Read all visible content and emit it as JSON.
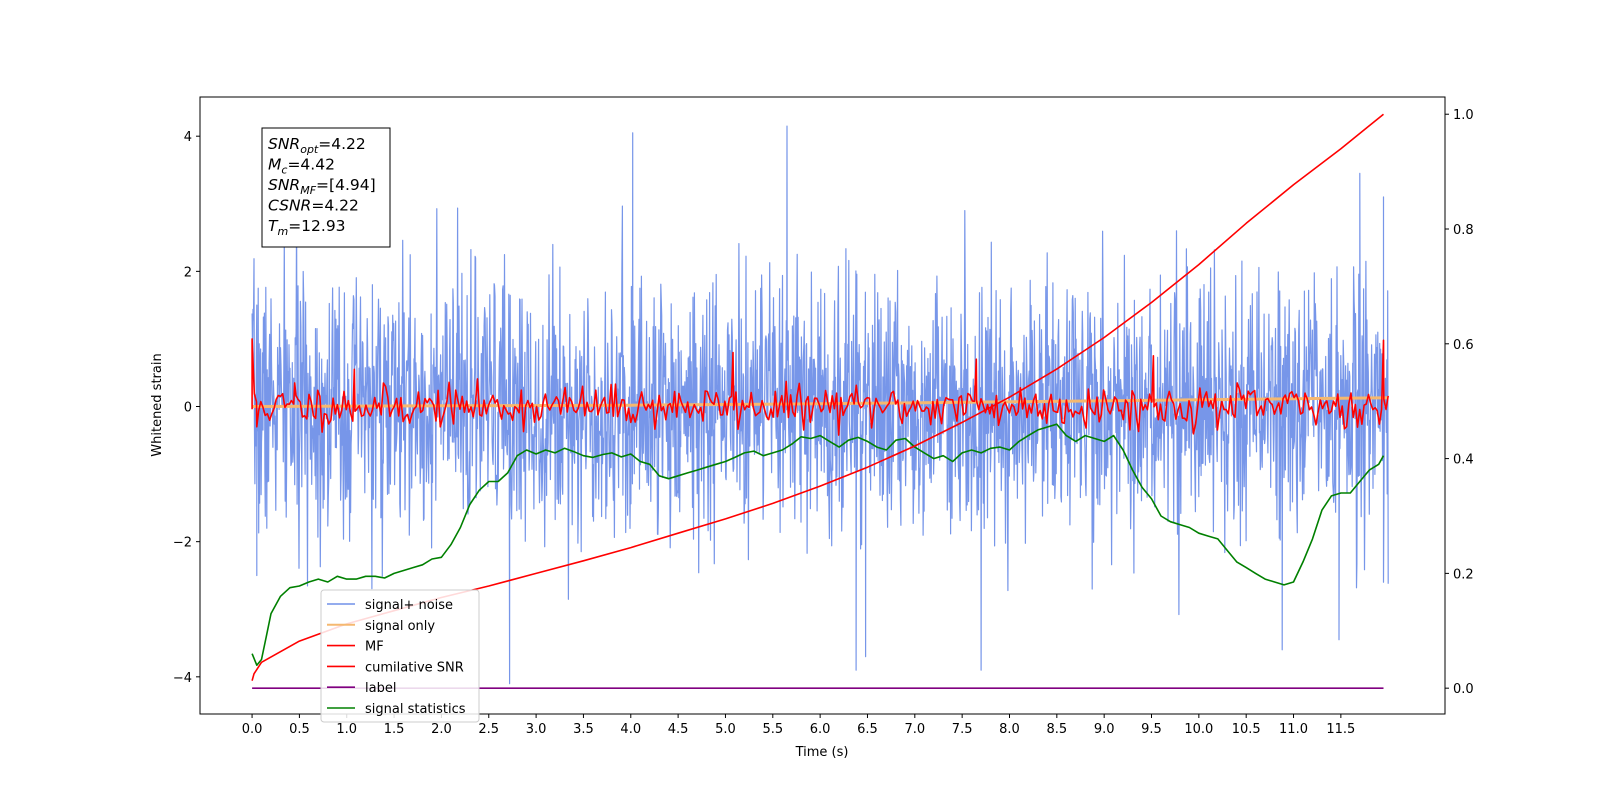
{
  "chart_data": {
    "type": "line",
    "title": "",
    "xlabel": "Time (s)",
    "ylabel": "Whitened strain",
    "y2label": "",
    "xlim": [
      -0.55,
      12.6
    ],
    "ylim": [
      -4.55,
      4.58
    ],
    "y2lim": [
      -0.045,
      1.03
    ],
    "xticks": [
      0.0,
      0.5,
      1.0,
      1.5,
      2.0,
      2.5,
      3.0,
      3.5,
      4.0,
      4.5,
      5.0,
      5.5,
      6.0,
      6.5,
      7.0,
      7.5,
      8.0,
      8.5,
      9.0,
      9.5,
      10.0,
      10.5,
      11.0,
      11.5
    ],
    "xtick_labels": [
      "0.0",
      "0.5",
      "1.0",
      "1.5",
      "2.0",
      "2.5",
      "3.0",
      "3.5",
      "4.0",
      "4.5",
      "5.0",
      "5.5",
      "6.0",
      "6.5",
      "7.0",
      "7.5",
      "8.0",
      "8.5",
      "9.0",
      "9.5",
      "10.0",
      "10.5",
      "11.0",
      "11.5"
    ],
    "yticks": [
      -4,
      -2,
      0,
      2,
      4
    ],
    "ytick_labels": [
      "−4",
      "−2",
      "0",
      "2",
      "4"
    ],
    "y2ticks": [
      0.0,
      0.2,
      0.4,
      0.6,
      0.8,
      1.0
    ],
    "y2tick_labels": [
      "0.0",
      "0.2",
      "0.4",
      "0.6",
      "0.8",
      "1.0"
    ],
    "grid": false,
    "legend_position": "lower-left",
    "annotation": {
      "lines": [
        {
          "var": "SNR",
          "sub": "opt",
          "val": "=4.22"
        },
        {
          "var": "M",
          "sub": "c",
          "val": "=4.42"
        },
        {
          "var": "SNR",
          "sub": "MF",
          "val": "=[4.94]"
        },
        {
          "var": "CSNR",
          "sub": "",
          "val": "=4.22"
        },
        {
          "var": "T",
          "sub": "m",
          "val": "=12.93"
        }
      ]
    },
    "series": [
      {
        "name": "signal+ noise",
        "color": "#7090e8",
        "axis": "left",
        "noise": {
          "t_start": 0.0,
          "t_end": 12.0,
          "std": 0.95,
          "n": 2400,
          "seed": 7
        },
        "values": [
          [
            0.05,
            1.5
          ],
          [
            0.05,
            -2.5
          ],
          [
            2.72,
            -4.1
          ],
          [
            4.02,
            4.05
          ],
          [
            5.65,
            4.15
          ],
          [
            6.38,
            -3.9
          ],
          [
            6.48,
            -3.7
          ],
          [
            7.7,
            -3.9
          ],
          [
            10.88,
            -3.6
          ],
          [
            11.48,
            -3.45
          ],
          [
            11.7,
            3.45
          ],
          [
            11.95,
            3.1
          ],
          [
            11.95,
            -2.6
          ]
        ]
      },
      {
        "name": "signal only",
        "color": "#f5b870",
        "axis": "left",
        "values": [
          [
            0.0,
            0.0
          ],
          [
            2.0,
            0.01
          ],
          [
            4.0,
            0.02
          ],
          [
            6.0,
            0.04
          ],
          [
            8.0,
            0.07
          ],
          [
            10.0,
            0.1
          ],
          [
            12.0,
            0.13
          ]
        ]
      },
      {
        "name": "MF",
        "color": "#ff0000",
        "axis": "left",
        "noise": {
          "t_start": 0.0,
          "t_end": 12.0,
          "std": 0.15,
          "n": 520,
          "seed": 11
        },
        "values": [
          [
            0.0,
            1.0
          ],
          [
            0.05,
            -0.3
          ],
          [
            0.45,
            0.35
          ],
          [
            1.08,
            0.55
          ],
          [
            5.08,
            0.8
          ],
          [
            7.65,
            0.7
          ],
          [
            9.52,
            0.75
          ],
          [
            11.95,
            0.98
          ]
        ]
      },
      {
        "name": "cumilative SNR",
        "color": "#ff0000",
        "axis": "right",
        "values": [
          [
            0.0,
            0.013
          ],
          [
            0.02,
            0.025
          ],
          [
            0.1,
            0.045
          ],
          [
            0.5,
            0.082
          ],
          [
            1.0,
            0.112
          ],
          [
            1.5,
            0.135
          ],
          [
            2.0,
            0.158
          ],
          [
            2.5,
            0.178
          ],
          [
            3.0,
            0.2
          ],
          [
            3.5,
            0.222
          ],
          [
            4.0,
            0.245
          ],
          [
            4.5,
            0.27
          ],
          [
            5.0,
            0.295
          ],
          [
            5.5,
            0.322
          ],
          [
            6.0,
            0.352
          ],
          [
            6.5,
            0.385
          ],
          [
            7.0,
            0.422
          ],
          [
            7.5,
            0.463
          ],
          [
            8.0,
            0.507
          ],
          [
            8.5,
            0.556
          ],
          [
            9.0,
            0.611
          ],
          [
            9.5,
            0.672
          ],
          [
            10.0,
            0.738
          ],
          [
            10.5,
            0.81
          ],
          [
            11.0,
            0.877
          ],
          [
            11.5,
            0.94
          ],
          [
            11.95,
            1.0
          ]
        ]
      },
      {
        "name": "label",
        "color": "#800080",
        "axis": "right",
        "values": [
          [
            0.0,
            0.0
          ],
          [
            11.95,
            0.0
          ]
        ]
      },
      {
        "name": "signal statistics",
        "color": "#008000",
        "axis": "right",
        "values": [
          [
            0.0,
            0.06
          ],
          [
            0.05,
            0.04
          ],
          [
            0.1,
            0.05
          ],
          [
            0.15,
            0.09
          ],
          [
            0.2,
            0.13
          ],
          [
            0.3,
            0.16
          ],
          [
            0.4,
            0.175
          ],
          [
            0.5,
            0.178
          ],
          [
            0.6,
            0.185
          ],
          [
            0.7,
            0.19
          ],
          [
            0.8,
            0.185
          ],
          [
            0.9,
            0.195
          ],
          [
            1.0,
            0.19
          ],
          [
            1.1,
            0.19
          ],
          [
            1.2,
            0.195
          ],
          [
            1.3,
            0.195
          ],
          [
            1.4,
            0.192
          ],
          [
            1.5,
            0.2
          ],
          [
            1.6,
            0.205
          ],
          [
            1.7,
            0.21
          ],
          [
            1.8,
            0.215
          ],
          [
            1.9,
            0.225
          ],
          [
            2.0,
            0.228
          ],
          [
            2.1,
            0.25
          ],
          [
            2.2,
            0.28
          ],
          [
            2.3,
            0.32
          ],
          [
            2.4,
            0.345
          ],
          [
            2.5,
            0.36
          ],
          [
            2.6,
            0.36
          ],
          [
            2.7,
            0.375
          ],
          [
            2.8,
            0.405
          ],
          [
            2.9,
            0.415
          ],
          [
            3.0,
            0.408
          ],
          [
            3.1,
            0.415
          ],
          [
            3.2,
            0.41
          ],
          [
            3.3,
            0.418
          ],
          [
            3.4,
            0.412
          ],
          [
            3.5,
            0.405
          ],
          [
            3.6,
            0.402
          ],
          [
            3.7,
            0.407
          ],
          [
            3.8,
            0.41
          ],
          [
            3.9,
            0.403
          ],
          [
            4.0,
            0.408
          ],
          [
            4.1,
            0.395
          ],
          [
            4.2,
            0.39
          ],
          [
            4.3,
            0.37
          ],
          [
            4.4,
            0.365
          ],
          [
            4.5,
            0.37
          ],
          [
            4.6,
            0.375
          ],
          [
            4.7,
            0.38
          ],
          [
            4.8,
            0.385
          ],
          [
            4.9,
            0.39
          ],
          [
            5.0,
            0.395
          ],
          [
            5.1,
            0.402
          ],
          [
            5.2,
            0.41
          ],
          [
            5.3,
            0.413
          ],
          [
            5.4,
            0.405
          ],
          [
            5.5,
            0.41
          ],
          [
            5.6,
            0.415
          ],
          [
            5.7,
            0.425
          ],
          [
            5.8,
            0.438
          ],
          [
            5.9,
            0.435
          ],
          [
            6.0,
            0.44
          ],
          [
            6.1,
            0.43
          ],
          [
            6.2,
            0.42
          ],
          [
            6.3,
            0.432
          ],
          [
            6.4,
            0.437
          ],
          [
            6.5,
            0.43
          ],
          [
            6.6,
            0.42
          ],
          [
            6.7,
            0.415
          ],
          [
            6.8,
            0.432
          ],
          [
            6.9,
            0.435
          ],
          [
            7.0,
            0.42
          ],
          [
            7.1,
            0.41
          ],
          [
            7.2,
            0.4
          ],
          [
            7.3,
            0.405
          ],
          [
            7.4,
            0.395
          ],
          [
            7.5,
            0.41
          ],
          [
            7.6,
            0.415
          ],
          [
            7.7,
            0.41
          ],
          [
            7.8,
            0.418
          ],
          [
            7.9,
            0.42
          ],
          [
            8.0,
            0.415
          ],
          [
            8.1,
            0.43
          ],
          [
            8.2,
            0.44
          ],
          [
            8.3,
            0.45
          ],
          [
            8.4,
            0.455
          ],
          [
            8.5,
            0.46
          ],
          [
            8.6,
            0.44
          ],
          [
            8.7,
            0.43
          ],
          [
            8.8,
            0.44
          ],
          [
            8.9,
            0.435
          ],
          [
            9.0,
            0.43
          ],
          [
            9.1,
            0.44
          ],
          [
            9.2,
            0.415
          ],
          [
            9.3,
            0.38
          ],
          [
            9.4,
            0.35
          ],
          [
            9.5,
            0.33
          ],
          [
            9.6,
            0.3
          ],
          [
            9.7,
            0.29
          ],
          [
            9.8,
            0.285
          ],
          [
            9.9,
            0.28
          ],
          [
            10.0,
            0.27
          ],
          [
            10.1,
            0.265
          ],
          [
            10.2,
            0.26
          ],
          [
            10.3,
            0.24
          ],
          [
            10.4,
            0.22
          ],
          [
            10.5,
            0.21
          ],
          [
            10.6,
            0.2
          ],
          [
            10.7,
            0.19
          ],
          [
            10.8,
            0.185
          ],
          [
            10.9,
            0.18
          ],
          [
            11.0,
            0.185
          ],
          [
            11.1,
            0.22
          ],
          [
            11.2,
            0.26
          ],
          [
            11.3,
            0.31
          ],
          [
            11.4,
            0.335
          ],
          [
            11.5,
            0.34
          ],
          [
            11.6,
            0.34
          ],
          [
            11.7,
            0.36
          ],
          [
            11.8,
            0.38
          ],
          [
            11.9,
            0.39
          ],
          [
            11.95,
            0.405
          ]
        ]
      }
    ]
  }
}
